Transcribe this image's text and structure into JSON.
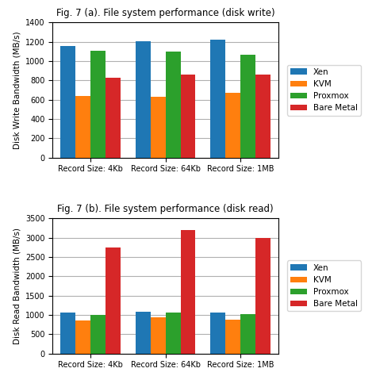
{
  "chart_data": [
    {
      "type": "bar",
      "title": "Fig. 7 (a). File system performance (disk write)",
      "ylabel": "Disk Write Bandwidth (MB/s)",
      "categories": [
        "Record Size: 4Kb",
        "Record Size: 64Kb",
        "Record Size: 1MB"
      ],
      "series": [
        {
          "name": "Xen",
          "values": [
            1160,
            1210,
            1220
          ]
        },
        {
          "name": "KVM",
          "values": [
            640,
            630,
            670
          ]
        },
        {
          "name": "Proxmox",
          "values": [
            1110,
            1100,
            1065
          ]
        },
        {
          "name": "Bare Metal",
          "values": [
            830,
            860,
            865
          ]
        }
      ],
      "ylim": [
        0,
        1400
      ],
      "yticks": [
        0,
        200,
        400,
        600,
        800,
        1000,
        1200,
        1400
      ],
      "grid": true,
      "legend": "right"
    },
    {
      "type": "bar",
      "title": "Fig. 7 (b). File system performance (disk read)",
      "ylabel": "Disk Read Bandwidth (MB/s)",
      "categories": [
        "Record Size: 4Kb",
        "Record Size: 64Kb",
        "Record Size: 1MB"
      ],
      "series": [
        {
          "name": "Xen",
          "values": [
            1070,
            1090,
            1050
          ]
        },
        {
          "name": "KVM",
          "values": [
            860,
            940,
            870
          ]
        },
        {
          "name": "Proxmox",
          "values": [
            1000,
            1060,
            1010
          ]
        },
        {
          "name": "Bare Metal",
          "values": [
            2750,
            3200,
            3000
          ]
        }
      ],
      "ylim": [
        0,
        3500
      ],
      "yticks": [
        0,
        500,
        1000,
        1500,
        2000,
        2500,
        3000,
        3500
      ],
      "grid": true,
      "legend": "right"
    }
  ]
}
